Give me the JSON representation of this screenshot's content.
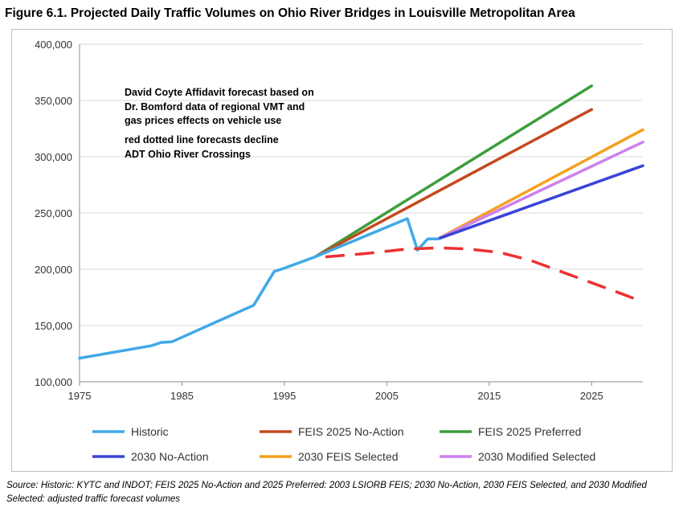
{
  "title": "Figure 6.1.  Projected Daily Traffic Volumes on Ohio River Bridges in Louisville Metropolitan Area",
  "source": "Source: Historic: KYTC and INDOT; FEIS 2025 No-Action and 2025 Preferred: 2003 LSIORB FEIS; 2030 No-Action, 2030 FEIS Selected, and 2030 Modified Selected: adjusted traffic forecast volumes",
  "chart_data": {
    "type": "line",
    "title": "",
    "xlabel": "",
    "ylabel": "",
    "xlim": [
      1975,
      2030
    ],
    "ylim": [
      100000,
      400000
    ],
    "x_ticks": [
      1975,
      1985,
      1995,
      2005,
      2015,
      2025
    ],
    "y_ticks": [
      100000,
      150000,
      200000,
      250000,
      300000,
      350000,
      400000
    ],
    "y_tick_labels": [
      "100,000",
      "150,000",
      "200,000",
      "250,000",
      "300,000",
      "350,000",
      "400,000"
    ],
    "grid": "horizontal",
    "legend_position": "bottom",
    "series": [
      {
        "name": "Historic",
        "color": "#3fa9e8",
        "style": "solid",
        "points": [
          [
            1975,
            121000
          ],
          [
            1982,
            132000
          ],
          [
            1983,
            135000
          ],
          [
            1984,
            135500
          ],
          [
            1992,
            168000
          ],
          [
            1994,
            198000
          ],
          [
            1995,
            201000
          ],
          [
            1998,
            211000
          ],
          [
            2007,
            245000
          ],
          [
            2008,
            217000
          ],
          [
            2009,
            227000
          ],
          [
            2010,
            227000
          ]
        ]
      },
      {
        "name": "FEIS 2025 No-Action",
        "color": "#c5491e",
        "style": "solid",
        "points": [
          [
            1998,
            211000
          ],
          [
            2025,
            342000
          ]
        ]
      },
      {
        "name": "FEIS 2025 Preferred",
        "color": "#3d9e3d",
        "style": "solid",
        "points": [
          [
            1998,
            211000
          ],
          [
            2025,
            363000
          ]
        ]
      },
      {
        "name": "2030 No-Action",
        "color": "#3a44d8",
        "style": "solid",
        "points": [
          [
            2010,
            227000
          ],
          [
            2030,
            292000
          ]
        ]
      },
      {
        "name": "2030 FEIS Selected",
        "color": "#f5a020",
        "style": "solid",
        "points": [
          [
            2010,
            227000
          ],
          [
            2030,
            324000
          ]
        ]
      },
      {
        "name": "2030 Modified Selected",
        "color": "#cc80f0",
        "style": "solid",
        "points": [
          [
            2010,
            227000
          ],
          [
            2030,
            313000
          ]
        ]
      }
    ],
    "forecast_line": {
      "color": "#ee3030",
      "style": "dashed",
      "points": [
        [
          1999,
          211000
        ],
        [
          2003,
          214000
        ],
        [
          2007,
          218000
        ],
        [
          2010,
          219000
        ],
        [
          2013,
          218000
        ],
        [
          2016,
          215000
        ],
        [
          2019,
          208000
        ],
        [
          2022,
          198000
        ],
        [
          2025,
          188000
        ],
        [
          2028,
          178000
        ],
        [
          2030,
          171000
        ]
      ]
    },
    "annotations": [
      "David Coyte Affidavit forecast based on",
      "Dr. Bomford data of regional VMT and",
      "gas prices effects on vehicle use",
      "red dotted line forecasts decline",
      "ADT Ohio River Crossings"
    ]
  }
}
